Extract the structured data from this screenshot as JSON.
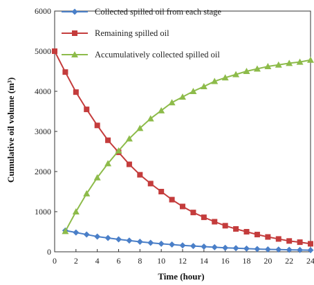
{
  "chart_data": {
    "type": "line",
    "xlabel": "Time (hour)",
    "ylabel": "Cumulative oil volume (m³)",
    "xlim": [
      0,
      24
    ],
    "ylim": [
      0,
      6000
    ],
    "x_ticks": [
      "0",
      "2",
      "4",
      "6",
      "8",
      "10",
      "12",
      "14",
      "16",
      "18",
      "20",
      "22",
      "24"
    ],
    "y_ticks": [
      "0",
      "1000",
      "2000",
      "3000",
      "4000",
      "5000",
      "6000"
    ],
    "grid": false,
    "legend_position": "top",
    "series": [
      {
        "name": "Collected spilled oil from each stage",
        "color": "#4a7fc8",
        "marker": "diamond",
        "x": [
          1,
          2,
          3,
          4,
          5,
          6,
          7,
          8,
          9,
          10,
          11,
          12,
          13,
          14,
          15,
          16,
          17,
          18,
          19,
          20,
          21,
          22,
          23,
          24
        ],
        "values": [
          530,
          480,
          430,
          380,
          345,
          310,
          280,
          250,
          225,
          200,
          180,
          160,
          145,
          130,
          115,
          100,
          90,
          80,
          70,
          60,
          55,
          50,
          45,
          40
        ]
      },
      {
        "name": "Remaining spilled oil",
        "color": "#c43c3c",
        "marker": "square",
        "x": [
          0,
          1,
          2,
          3,
          4,
          5,
          6,
          7,
          8,
          9,
          10,
          11,
          12,
          13,
          14,
          15,
          16,
          17,
          18,
          19,
          20,
          21,
          22,
          23,
          24
        ],
        "values": [
          5000,
          4480,
          3980,
          3550,
          3150,
          2780,
          2480,
          2180,
          1920,
          1700,
          1500,
          1300,
          1130,
          980,
          860,
          750,
          650,
          570,
          500,
          430,
          370,
          320,
          270,
          240,
          200
        ]
      },
      {
        "name": "Accumulatively collected spilled oil",
        "color": "#8dbb4a",
        "marker": "triangle",
        "x": [
          1,
          2,
          3,
          4,
          5,
          6,
          7,
          8,
          9,
          10,
          11,
          12,
          13,
          14,
          15,
          16,
          17,
          18,
          19,
          20,
          21,
          22,
          23,
          24
        ],
        "values": [
          510,
          1000,
          1450,
          1850,
          2200,
          2520,
          2820,
          3080,
          3320,
          3520,
          3720,
          3860,
          4000,
          4120,
          4250,
          4340,
          4420,
          4500,
          4560,
          4620,
          4660,
          4700,
          4730,
          4780
        ]
      }
    ]
  }
}
